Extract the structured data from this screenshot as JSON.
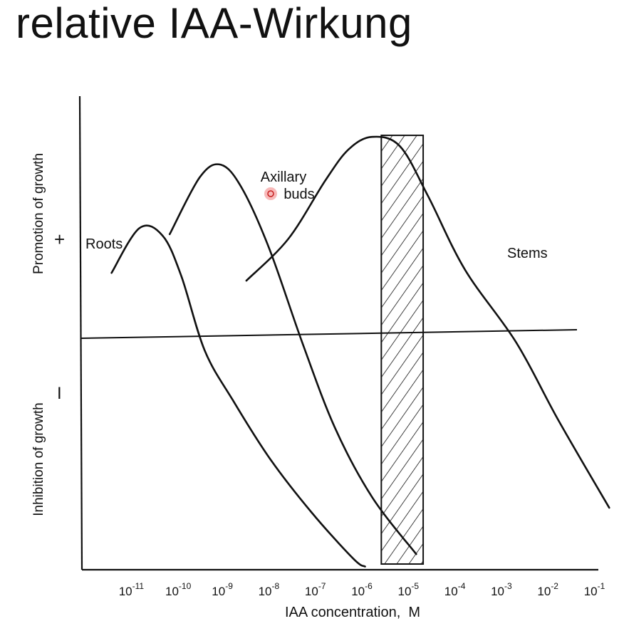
{
  "slide": {
    "title": "relative IAA-Wirkung"
  },
  "chart_data": {
    "type": "line",
    "xlabel": "IAA concentration,  M",
    "x_scale": "log",
    "x_ticks": [
      {
        "exp": -11,
        "label": "10-11"
      },
      {
        "exp": -10,
        "label": "10-10"
      },
      {
        "exp": -9,
        "label": "10-9"
      },
      {
        "exp": -8,
        "label": "10-8"
      },
      {
        "exp": -7,
        "label": "10-7"
      },
      {
        "exp": -6,
        "label": "10-6"
      },
      {
        "exp": -5,
        "label": "10-5"
      },
      {
        "exp": -4,
        "label": "10-4"
      },
      {
        "exp": -3,
        "label": "10-3"
      },
      {
        "exp": -2,
        "label": "10-2"
      },
      {
        "exp": -1,
        "label": "10-1"
      }
    ],
    "ylabel_top": "Promotion of growth",
    "ylabel_bottom": "Inhibition of growth",
    "y_plus": "+",
    "y_minus": "I",
    "ylim": [
      -1.5,
      1.4
    ],
    "grid": false,
    "series": [
      {
        "name": "Roots",
        "points": [
          [
            -11.4,
            0.4
          ],
          [
            -10.8,
            0.69
          ],
          [
            -10.3,
            0.64
          ],
          [
            -9.9,
            0.38
          ],
          [
            -9.4,
            -0.1
          ],
          [
            -8.8,
            -0.42
          ],
          [
            -8.0,
            -0.8
          ],
          [
            -7.1,
            -1.15
          ],
          [
            -6.2,
            -1.45
          ],
          [
            -5.95,
            -1.5
          ]
        ]
      },
      {
        "name": "Axillary\nbuds",
        "points": [
          [
            -10.15,
            0.65
          ],
          [
            -9.5,
            1.02
          ],
          [
            -9.05,
            1.1
          ],
          [
            -8.6,
            0.95
          ],
          [
            -8.0,
            0.55
          ],
          [
            -7.3,
            -0.05
          ],
          [
            -6.6,
            -0.6
          ],
          [
            -5.8,
            -1.05
          ],
          [
            -4.85,
            -1.42
          ]
        ]
      },
      {
        "name": "Stems",
        "points": [
          [
            -8.5,
            0.35
          ],
          [
            -7.6,
            0.62
          ],
          [
            -6.8,
            1.0
          ],
          [
            -6.3,
            1.2
          ],
          [
            -5.8,
            1.28
          ],
          [
            -5.2,
            1.22
          ],
          [
            -4.6,
            0.9
          ],
          [
            -3.8,
            0.42
          ],
          [
            -2.7,
            -0.05
          ],
          [
            -1.8,
            -0.55
          ],
          [
            -0.7,
            -1.12
          ]
        ]
      }
    ],
    "shaded_band": {
      "x": [
        -5.6,
        -4.7
      ]
    }
  }
}
